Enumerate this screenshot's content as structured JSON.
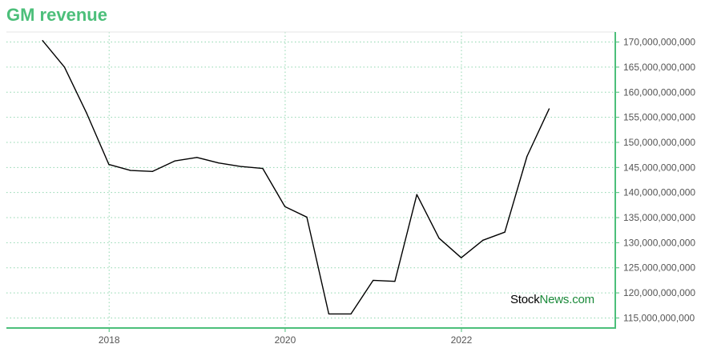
{
  "title": "GM revenue",
  "watermark": {
    "part1": "Stock",
    "part2": "News",
    "part3": ".com"
  },
  "colors": {
    "title": "#4cbf7a",
    "axis": "#4cbf7a",
    "grid": "#8fd6ae",
    "line": "#000000",
    "brand_green": "#1b8a3a"
  },
  "chart_data": {
    "type": "line",
    "title": "GM revenue",
    "xlabel": "",
    "ylabel": "",
    "grid": true,
    "ylim": [
      113000000000,
      172000000000
    ],
    "xlim": [
      "2016-11-01",
      "2023-10-01"
    ],
    "x_ticks": [
      {
        "date": "2018-01-01",
        "label": "2018"
      },
      {
        "date": "2020-01-01",
        "label": "2020"
      },
      {
        "date": "2022-01-01",
        "label": "2022"
      }
    ],
    "y_ticks": [
      {
        "value": 115000000000,
        "label": "115,000,000,000"
      },
      {
        "value": 120000000000,
        "label": "120,000,000,000"
      },
      {
        "value": 125000000000,
        "label": "125,000,000,000"
      },
      {
        "value": 130000000000,
        "label": "130,000,000,000"
      },
      {
        "value": 135000000000,
        "label": "135,000,000,000"
      },
      {
        "value": 140000000000,
        "label": "140,000,000,000"
      },
      {
        "value": 145000000000,
        "label": "145,000,000,000"
      },
      {
        "value": 150000000000,
        "label": "150,000,000,000"
      },
      {
        "value": 155000000000,
        "label": "155,000,000,000"
      },
      {
        "value": 160000000000,
        "label": "160,000,000,000"
      },
      {
        "value": 165000000000,
        "label": "165,000,000,000"
      },
      {
        "value": 170000000000,
        "label": "170,000,000,000"
      }
    ],
    "series": [
      {
        "x": [
          "2017-03-31",
          "2017-06-30",
          "2017-09-30",
          "2017-12-31",
          "2018-03-31",
          "2018-06-30",
          "2018-09-30",
          "2018-12-31",
          "2019-03-31",
          "2019-06-30",
          "2019-09-30",
          "2019-12-31",
          "2020-03-31",
          "2020-06-30",
          "2020-09-30",
          "2020-12-31",
          "2021-03-31",
          "2021-06-30",
          "2021-09-30",
          "2021-12-31",
          "2022-03-31",
          "2022-06-30",
          "2022-09-30",
          "2022-12-31"
        ],
        "values": [
          170300000000,
          165000000000,
          155800000000,
          145600000000,
          144400000000,
          144200000000,
          146300000000,
          147000000000,
          145900000000,
          145200000000,
          144800000000,
          137200000000,
          135100000000,
          115800000000,
          115800000000,
          122500000000,
          122300000000,
          139600000000,
          130900000000,
          127000000000,
          130500000000,
          132100000000,
          147200000000,
          156700000000
        ]
      }
    ]
  }
}
